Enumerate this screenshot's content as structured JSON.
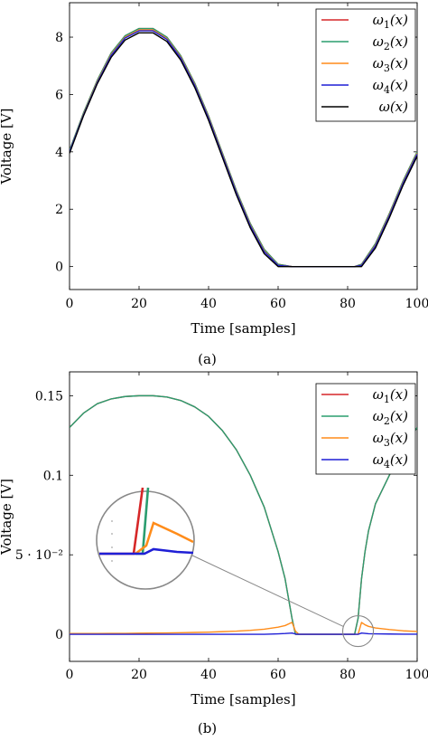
{
  "chart_data": [
    {
      "type": "line",
      "caption": "(a)",
      "xlabel": "Time [samples]",
      "ylabel": "Voltage [V]",
      "xlim": [
        0,
        100
      ],
      "ylim": [
        -0.8,
        9.2
      ],
      "xticks": [
        0,
        20,
        40,
        60,
        80,
        100
      ],
      "xtick_labels": [
        "0",
        "20",
        "40",
        "60",
        "80",
        "100"
      ],
      "yticks": [
        0,
        2,
        4,
        6,
        8
      ],
      "ytick_labels": [
        "0",
        "2",
        "4",
        "6",
        "8"
      ],
      "legend_position": "top-right",
      "x": [
        0,
        4,
        8,
        12,
        16,
        20,
        24,
        28,
        32,
        36,
        40,
        44,
        48,
        52,
        56,
        60,
        64,
        66,
        70,
        74,
        78,
        82,
        84,
        88,
        92,
        96,
        100
      ],
      "series": [
        {
          "name": "ω1(x)",
          "color": "#d62728",
          "values": [
            4.05,
            5.35,
            6.5,
            7.45,
            8.05,
            8.3,
            8.3,
            8.0,
            7.35,
            6.4,
            5.25,
            3.95,
            2.65,
            1.5,
            0.6,
            0.08,
            0.0,
            0.0,
            0.0,
            0.0,
            0.0,
            0.0,
            0.08,
            0.8,
            1.85,
            3.0,
            4.0
          ]
        },
        {
          "name": "ω2(x)",
          "color": "#2a9d6f",
          "values": [
            4.05,
            5.35,
            6.5,
            7.45,
            8.05,
            8.3,
            8.3,
            8.0,
            7.35,
            6.4,
            5.25,
            3.95,
            2.65,
            1.5,
            0.6,
            0.08,
            0.0,
            0.0,
            0.0,
            0.0,
            0.0,
            0.0,
            0.08,
            0.8,
            1.85,
            3.0,
            4.0
          ]
        },
        {
          "name": "ω3(x)",
          "color": "#ff8c1a",
          "values": [
            4.0,
            5.3,
            6.45,
            7.4,
            8.0,
            8.25,
            8.25,
            7.95,
            7.3,
            6.35,
            5.2,
            3.9,
            2.6,
            1.45,
            0.55,
            0.05,
            0.0,
            0.0,
            0.0,
            0.0,
            0.0,
            0.0,
            0.05,
            0.75,
            1.8,
            2.95,
            3.95
          ]
        },
        {
          "name": "ω4(x)",
          "color": "#1f1fd6",
          "values": [
            4.0,
            5.28,
            6.42,
            7.37,
            7.97,
            8.22,
            8.22,
            7.92,
            7.27,
            6.32,
            5.17,
            3.87,
            2.57,
            1.42,
            0.52,
            0.04,
            0.0,
            0.0,
            0.0,
            0.0,
            0.0,
            0.0,
            0.04,
            0.72,
            1.77,
            2.92,
            3.92
          ]
        },
        {
          "name": "ω(x)",
          "color": "#000000",
          "values": [
            3.95,
            5.25,
            6.38,
            7.3,
            7.9,
            8.15,
            8.15,
            7.85,
            7.2,
            6.25,
            5.1,
            3.8,
            2.5,
            1.35,
            0.45,
            0.0,
            0.0,
            0.0,
            0.0,
            0.0,
            0.0,
            0.0,
            0.0,
            0.65,
            1.7,
            2.85,
            3.85
          ]
        }
      ]
    },
    {
      "type": "line",
      "caption": "(b)",
      "xlabel": "Time [samples]",
      "ylabel": "Voltage [V]",
      "xlim": [
        0,
        100
      ],
      "ylim": [
        -0.017,
        0.165
      ],
      "xticks": [
        0,
        20,
        40,
        60,
        80,
        100
      ],
      "xtick_labels": [
        "0",
        "20",
        "40",
        "60",
        "80",
        "100"
      ],
      "yticks": [
        0,
        0.05,
        0.1,
        0.15
      ],
      "ytick_labels": [
        "0",
        "5 · 10⁻²",
        "0.1",
        "0.15"
      ],
      "legend_position": "top-right",
      "x": [
        0,
        4,
        8,
        12,
        16,
        20,
        24,
        28,
        32,
        36,
        40,
        44,
        48,
        52,
        56,
        60,
        62,
        64,
        65,
        66,
        70,
        74,
        78,
        82,
        83,
        84,
        85,
        86,
        88,
        92,
        96,
        100
      ],
      "series": [
        {
          "name": "ω1(x)",
          "color": "#d62728",
          "values": [
            0.13,
            0.139,
            0.145,
            0.148,
            0.1495,
            0.15,
            0.15,
            0.1492,
            0.147,
            0.143,
            0.137,
            0.128,
            0.116,
            0.1,
            0.08,
            0.052,
            0.035,
            0.01,
            0.0,
            0.0,
            0.0,
            0.0,
            0.0,
            0.0,
            0.01,
            0.035,
            0.052,
            0.065,
            0.082,
            0.1,
            0.117,
            0.13
          ]
        },
        {
          "name": "ω2(x)",
          "color": "#2a9d6f",
          "values": [
            0.13,
            0.139,
            0.145,
            0.148,
            0.1495,
            0.15,
            0.15,
            0.1492,
            0.147,
            0.143,
            0.137,
            0.128,
            0.116,
            0.1,
            0.08,
            0.052,
            0.035,
            0.01,
            0.0,
            0.0,
            0.0,
            0.0,
            0.0,
            0.0,
            0.01,
            0.035,
            0.052,
            0.065,
            0.082,
            0.1,
            0.117,
            0.13
          ]
        },
        {
          "name": "ω3(x)",
          "color": "#ff8c1a",
          "values": [
            0.0005,
            0.0005,
            0.0005,
            0.0006,
            0.0006,
            0.0007,
            0.0008,
            0.0009,
            0.001,
            0.0012,
            0.0014,
            0.0017,
            0.002,
            0.0025,
            0.0032,
            0.0045,
            0.0055,
            0.0075,
            0.002,
            0.0,
            0.0,
            0.0,
            0.0,
            0.0,
            0.0,
            0.0075,
            0.006,
            0.005,
            0.004,
            0.003,
            0.0022,
            0.0018
          ]
        },
        {
          "name": "ω4(x)",
          "color": "#1f1fd6",
          "values": [
            0.0,
            0.0,
            0.0,
            0.0,
            0.0,
            0.0,
            0.0,
            0.0,
            0.0,
            0.0,
            0.0,
            0.0,
            0.0,
            0.0,
            0.0,
            0.0003,
            0.0005,
            0.0008,
            0.0002,
            0.0,
            0.0,
            0.0,
            0.0,
            0.0,
            0.0,
            0.0008,
            0.0006,
            0.0004,
            0.0003,
            0.0002,
            0.0001,
            0.0001
          ]
        }
      ]
    }
  ]
}
